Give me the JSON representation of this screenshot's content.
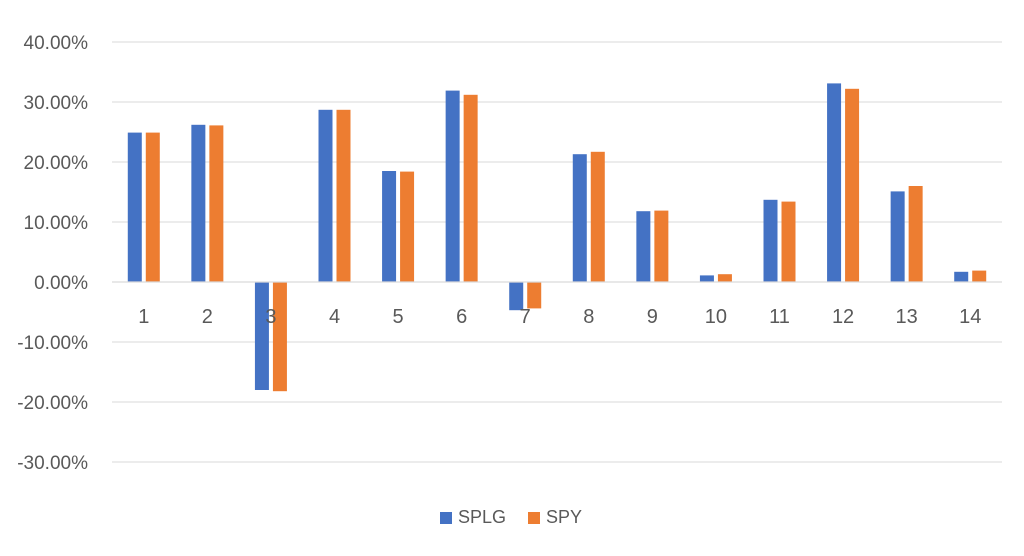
{
  "chart_data": {
    "type": "bar",
    "title": "",
    "xlabel": "",
    "ylabel": "",
    "categories": [
      "1",
      "2",
      "3",
      "4",
      "5",
      "6",
      "7",
      "8",
      "9",
      "10",
      "11",
      "12",
      "13",
      "14"
    ],
    "series": [
      {
        "name": "SPLG",
        "color": "#4472C4",
        "values": [
          24.9,
          26.2,
          -18.0,
          28.7,
          18.5,
          31.9,
          -4.7,
          21.3,
          11.8,
          1.1,
          13.7,
          33.1,
          15.1,
          1.7
        ]
      },
      {
        "name": "SPY",
        "color": "#ED7D31",
        "values": [
          24.9,
          26.1,
          -18.2,
          28.7,
          18.4,
          31.2,
          -4.4,
          21.7,
          11.9,
          1.3,
          13.4,
          32.2,
          16.0,
          1.9
        ]
      }
    ],
    "ylim": [
      -30,
      40
    ],
    "yticks": [
      "-30.00%",
      "-20.00%",
      "-10.00%",
      "0.00%",
      "10.00%",
      "20.00%",
      "30.00%",
      "40.00%"
    ],
    "ytick_values": [
      -30,
      -20,
      -10,
      0,
      10,
      20,
      30,
      40
    ],
    "grid": true,
    "legend_position": "bottom"
  },
  "legend": {
    "items": [
      {
        "label": "SPLG",
        "color": "#4472C4"
      },
      {
        "label": "SPY",
        "color": "#ED7D31"
      }
    ]
  }
}
